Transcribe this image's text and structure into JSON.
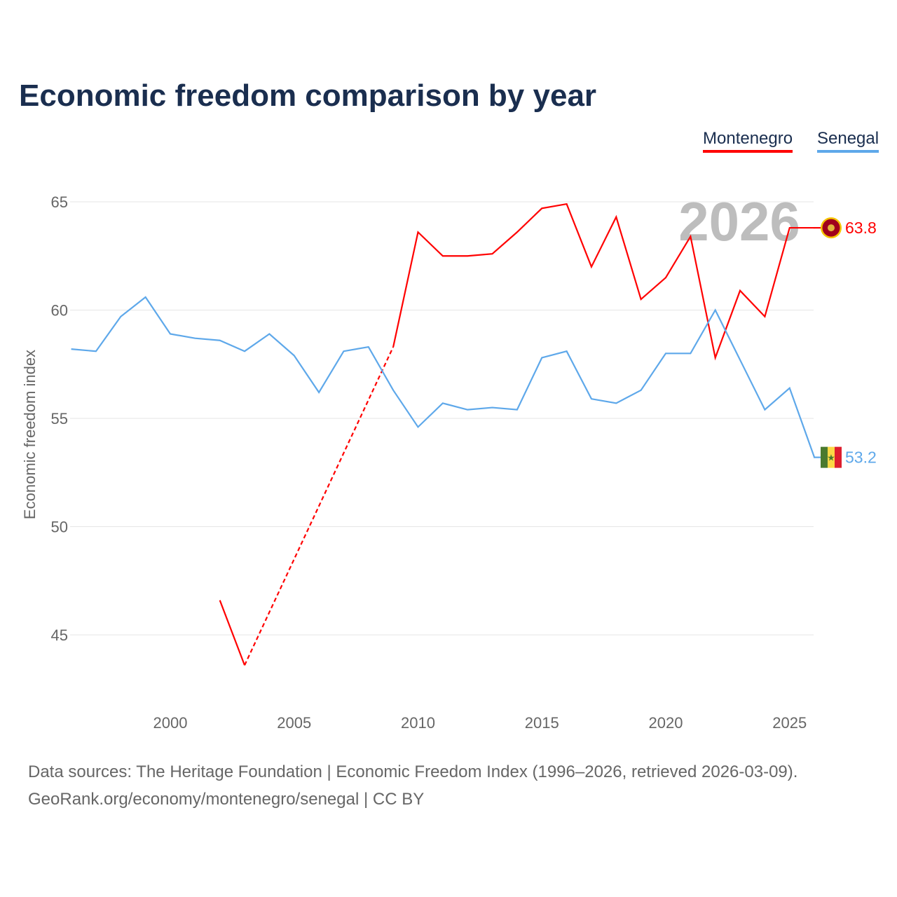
{
  "title": "Economic freedom comparison by year",
  "footer": {
    "line1": "Data sources: The Heritage Foundation | Economic Freedom Index (1996–2026, retrieved 2026-03-09).",
    "line2": "GeoRank.org/economy/montenegro/senegal | CC BY"
  },
  "chart_data": {
    "type": "line",
    "title": "Economic freedom comparison by year",
    "ylabel": "Economic freedom index",
    "xlabel": "",
    "watermark": "2026",
    "x": [
      1996,
      1997,
      1998,
      1999,
      2000,
      2001,
      2002,
      2003,
      2004,
      2005,
      2006,
      2007,
      2008,
      2009,
      2010,
      2011,
      2012,
      2013,
      2014,
      2015,
      2016,
      2017,
      2018,
      2019,
      2020,
      2021,
      2022,
      2023,
      2024,
      2025,
      2026
    ],
    "xticks": [
      "2000",
      "2005",
      "2010",
      "2015",
      "2020",
      "2025"
    ],
    "yticks": [
      "45",
      "50",
      "55",
      "60",
      "65"
    ],
    "xlim": [
      1996,
      2026
    ],
    "ylim": [
      42,
      67.5
    ],
    "legend": "top-right",
    "series": [
      {
        "name": "Montenegro",
        "color": "#ff0000",
        "end_label": "63.8",
        "flag": "montenegro-flag",
        "values": [
          null,
          null,
          null,
          null,
          null,
          null,
          46.6,
          43.6,
          null,
          null,
          null,
          null,
          null,
          58.3,
          63.6,
          62.5,
          62.5,
          62.6,
          63.6,
          64.7,
          64.9,
          62.0,
          64.3,
          60.5,
          61.5,
          63.4,
          57.8,
          60.9,
          59.7,
          63.8,
          63.8
        ]
      },
      {
        "name": "Senegal",
        "color": "#5ea8ea",
        "end_label": "53.2",
        "flag": "senegal-flag",
        "values": [
          58.2,
          58.1,
          59.7,
          60.6,
          58.9,
          58.7,
          58.6,
          58.1,
          58.9,
          57.9,
          56.2,
          58.1,
          58.3,
          56.3,
          54.6,
          55.7,
          55.4,
          55.5,
          55.4,
          57.8,
          58.1,
          55.9,
          55.7,
          56.3,
          58.0,
          58.0,
          60.0,
          57.7,
          55.4,
          56.4,
          53.2
        ]
      }
    ]
  }
}
